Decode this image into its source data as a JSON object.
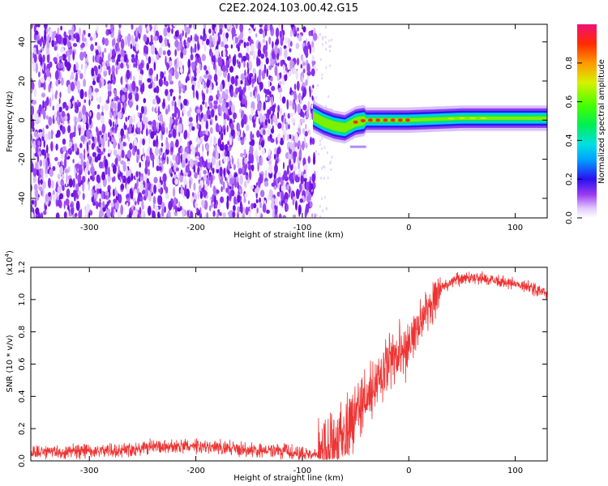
{
  "title": "C2E2.2024.103.00.42.G15",
  "chart_data": [
    {
      "type": "heatmap",
      "xlabel": "Height of straight line (km)",
      "ylabel": "Frequency (Hz)",
      "xlim": [
        -355,
        130
      ],
      "ylim": [
        -50,
        49
      ],
      "x_ticks": [
        -300,
        -200,
        -100,
        0,
        100
      ],
      "y_ticks": [
        -40,
        -20,
        0,
        20,
        40
      ],
      "noise_region_x": [
        -355,
        -88
      ],
      "signal_track": [
        {
          "x": -90,
          "y": 2
        },
        {
          "x": -80,
          "y": -1
        },
        {
          "x": -70,
          "y": -3
        },
        {
          "x": -60,
          "y": -4
        },
        {
          "x": -50,
          "y": -1
        },
        {
          "x": -40,
          "y": 0
        },
        {
          "x": -30,
          "y": 0
        },
        {
          "x": -20,
          "y": 0
        },
        {
          "x": -10,
          "y": 0
        },
        {
          "x": 0,
          "y": 0
        },
        {
          "x": 50,
          "y": 1
        },
        {
          "x": 100,
          "y": 1
        },
        {
          "x": 130,
          "y": 1
        }
      ],
      "colorbar": {
        "label": "Normalized spectral amplitude",
        "range": [
          0.0,
          1.0
        ],
        "ticks": [
          0.0,
          0.2,
          0.4,
          0.6,
          0.8
        ],
        "tick_labels": [
          "0.0",
          "0.2",
          "0.4",
          "0.6",
          "0.8"
        ]
      },
      "grid": false
    },
    {
      "type": "line",
      "xlabel": "Height of straight line (km)",
      "ylabel": "SNR (10 * v/v)",
      "multiplier_label": "(x10",
      "multiplier_exp": "4",
      "multiplier_close": ")",
      "xlim": [
        -355,
        130
      ],
      "ylim": [
        0.0,
        1.2
      ],
      "x_ticks": [
        -300,
        -200,
        -100,
        0,
        100
      ],
      "y_ticks": [
        0.0,
        0.2,
        0.4,
        0.6,
        0.8,
        1.0,
        1.2
      ],
      "y_tick_labels": [
        "0.0",
        "0.2",
        "0.4",
        "0.6",
        "0.8",
        "1.0",
        "1.2"
      ],
      "series": [
        {
          "color": "#ee3333",
          "x": [
            -355,
            -330,
            -300,
            -270,
            -240,
            -210,
            -180,
            -150,
            -120,
            -100,
            -90,
            -80,
            -70,
            -60,
            -50,
            -40,
            -30,
            -20,
            -10,
            0,
            10,
            20,
            30,
            40,
            50,
            60,
            70,
            80,
            90,
            100,
            110,
            120,
            130
          ],
          "y": [
            0.05,
            0.055,
            0.06,
            0.07,
            0.085,
            0.09,
            0.085,
            0.07,
            0.06,
            0.045,
            0.035,
            0.05,
            0.1,
            0.18,
            0.3,
            0.38,
            0.48,
            0.58,
            0.64,
            0.72,
            0.85,
            0.98,
            1.07,
            1.11,
            1.13,
            1.14,
            1.13,
            1.12,
            1.11,
            1.1,
            1.08,
            1.06,
            1.03
          ]
        }
      ],
      "grid": false
    }
  ]
}
